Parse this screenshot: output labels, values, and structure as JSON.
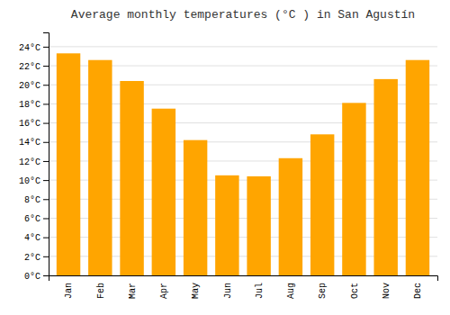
{
  "chart_data": {
    "type": "bar",
    "title": "Average monthly temperatures (°C ) in San Agustín",
    "categories": [
      "Jan",
      "Feb",
      "Mar",
      "Apr",
      "May",
      "Jun",
      "Jul",
      "Aug",
      "Sep",
      "Oct",
      "Nov",
      "Dec"
    ],
    "values": [
      23.3,
      22.6,
      20.4,
      17.5,
      14.2,
      10.5,
      10.4,
      12.3,
      14.8,
      18.1,
      20.6,
      22.6
    ],
    "color": "#FFA500",
    "ylim": [
      0,
      25.5
    ],
    "yticks": [
      {
        "value": 0,
        "label": "0°C"
      },
      {
        "value": 2,
        "label": "2°C"
      },
      {
        "value": 4,
        "label": "4°C"
      },
      {
        "value": 6,
        "label": "6°C"
      },
      {
        "value": 8,
        "label": "8°C"
      },
      {
        "value": 10,
        "label": "10°C"
      },
      {
        "value": 12,
        "label": "12°C"
      },
      {
        "value": 14,
        "label": "14°C"
      },
      {
        "value": 16,
        "label": "16°C"
      },
      {
        "value": 18,
        "label": "18°C"
      },
      {
        "value": 20,
        "label": "20°C"
      },
      {
        "value": 22,
        "label": "22°C"
      },
      {
        "value": 24,
        "label": "24°C"
      }
    ],
    "grid": true
  }
}
